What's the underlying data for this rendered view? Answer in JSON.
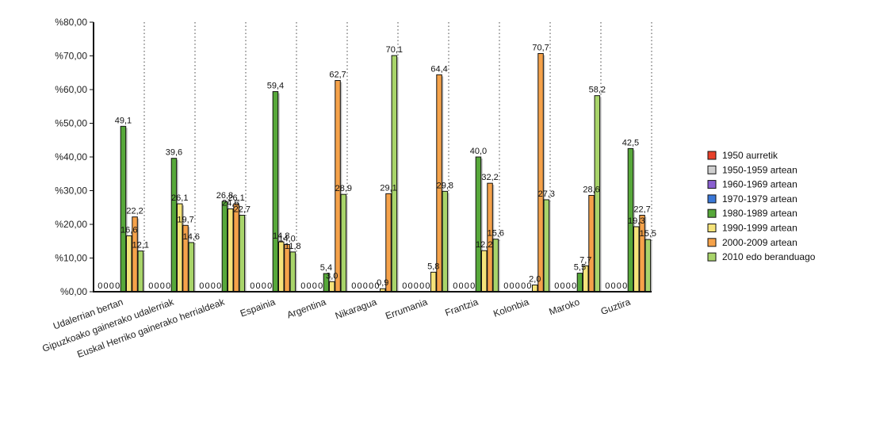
{
  "chart_data": {
    "type": "bar",
    "title": "",
    "xlabel": "",
    "ylabel": "",
    "ylim": [
      0,
      80
    ],
    "ytick_values": [
      0,
      10,
      20,
      30,
      40,
      50,
      60,
      70,
      80
    ],
    "ytick_labels": [
      "%0,00",
      "%10,00",
      "%20,00",
      "%30,00",
      "%40,00",
      "%50,00",
      "%60,00",
      "%70,00",
      "%80,00"
    ],
    "grid": "vertical-dotted",
    "legend_position": "right",
    "categories": [
      "Udalerrian bertan",
      "Gipuzkoako gainerako udalerriak",
      "Euskal Herriko gainerako herrialdeak",
      "Espainia",
      "Argentina",
      "Nikaragua",
      "Errumania",
      "Frantzia",
      "Kolonbia",
      "Maroko",
      "Guztira"
    ],
    "series": [
      {
        "name": "1950 aurretik",
        "color": "#e8402a",
        "values": [
          0,
          0,
          0,
          0,
          0,
          0,
          0,
          0,
          0,
          0,
          0
        ],
        "labels": [
          "0",
          "0",
          "0",
          "0",
          "0",
          "0",
          "0",
          "0",
          "0",
          "0",
          "0"
        ]
      },
      {
        "name": "1950-1959 artean",
        "color": "#cfcfcf",
        "values": [
          0,
          0,
          0,
          0,
          0,
          0,
          0,
          0,
          0,
          0,
          0
        ],
        "labels": [
          "0",
          "0",
          "0",
          "0",
          "0",
          "0",
          "0",
          "0",
          "0",
          "0",
          "0"
        ]
      },
      {
        "name": "1960-1969 artean",
        "color": "#8a5fd0",
        "values": [
          0,
          0,
          0,
          0,
          0,
          0,
          0,
          0,
          0,
          0,
          0
        ],
        "labels": [
          "0",
          "0",
          "0",
          "0",
          "0",
          "0",
          "0",
          "0",
          "0",
          "0",
          "0"
        ]
      },
      {
        "name": "1970-1979 artean",
        "color": "#3a78d8",
        "values": [
          0,
          0,
          0,
          0,
          0,
          0,
          0,
          0,
          0,
          0,
          0
        ],
        "labels": [
          "0",
          "0",
          "0",
          "0",
          "0",
          "0",
          "0",
          "0",
          "0",
          "0",
          "0"
        ]
      },
      {
        "name": "1980-1989 artean",
        "color": "#57a83a",
        "values": [
          49.1,
          39.6,
          26.8,
          59.4,
          5.4,
          0,
          0,
          40.0,
          0,
          5.5,
          42.5
        ],
        "labels": [
          "49,1",
          "39,6",
          "26,8",
          "59,4",
          "5,4",
          "0",
          "0",
          "40,0",
          "0",
          "5,5",
          "42,5"
        ]
      },
      {
        "name": "1990-1999 artean",
        "color": "#f5e37a",
        "values": [
          16.6,
          26.1,
          24.6,
          14.8,
          3.0,
          0.9,
          5.8,
          12.2,
          2.0,
          7.7,
          19.3
        ],
        "labels": [
          "16,6",
          "26,1",
          "24,6",
          "14,8",
          "3,0",
          "0,9",
          "5,8",
          "12,2",
          "2,0",
          "7,7",
          "19,3"
        ]
      },
      {
        "name": "2000-2009 artean",
        "color": "#f5a24a",
        "values": [
          22.2,
          19.7,
          26.1,
          14.0,
          62.7,
          29.1,
          64.4,
          32.2,
          70.7,
          28.6,
          22.7
        ],
        "labels": [
          "22,2",
          "19,7",
          "26,1",
          "14,0",
          "62,7",
          "29,1",
          "64,4",
          "32,2",
          "70,7",
          "28,6",
          "22,7"
        ]
      },
      {
        "name": "2010 edo beranduago",
        "color": "#a8d46a",
        "values": [
          12.1,
          14.6,
          22.7,
          11.8,
          28.9,
          70.1,
          29.8,
          15.6,
          27.3,
          58.2,
          15.5
        ],
        "labels": [
          "12,1",
          "14,6",
          "22,7",
          "11,8",
          "28,9",
          "70,1",
          "29,8",
          "15,6",
          "27,3",
          "58,2",
          "15,5"
        ]
      }
    ]
  }
}
